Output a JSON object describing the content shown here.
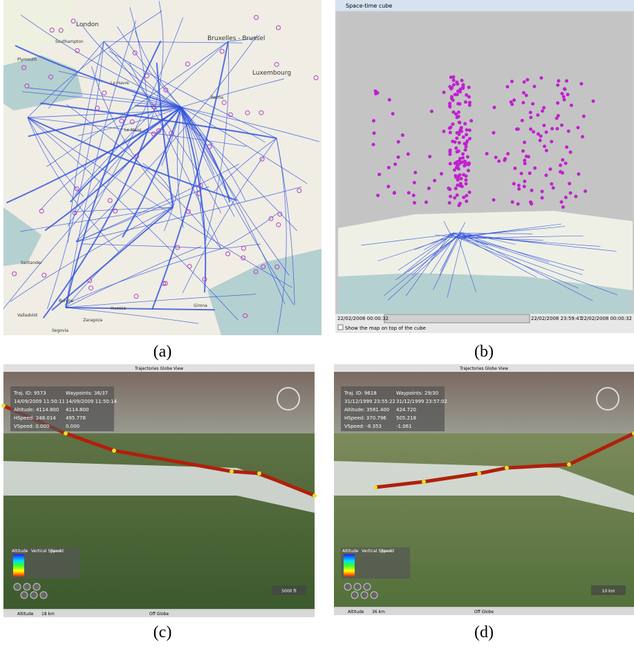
{
  "panels": [
    {
      "caption": "(a)",
      "labels": [
        "London",
        "Southampton",
        "Plymouth",
        "Bruxelles - Brussel",
        "Luxembourg",
        "Le Havre",
        "Reims",
        "Le Mans",
        "Santander",
        "Burgos",
        "Valladolid",
        "Segovia",
        "Huesca",
        "Girona",
        "Zaragoza"
      ]
    },
    {
      "caption": "(b)",
      "window_title": "Space-time cube",
      "start": "22/02/2008 00:00:32",
      "end": "22/02/2008 23:59:47",
      "current": "22/02/2008 00:00:32",
      "checkbox": "Show the map on top of the cube"
    },
    {
      "caption": "(c)",
      "window_title": "Trajectories Globe View",
      "info": [
        [
          "Traj. ID: 9573",
          "Waypoints: 36/37"
        ],
        [
          "14/09/2009 11:50:11",
          "14/09/2009 11:50:14"
        ],
        [
          "Altitude: 4114.800",
          "4114.800"
        ],
        [
          "HSpeed: 248.014",
          "495.778"
        ],
        [
          "VSpeed: 0.000",
          "0.000"
        ]
      ],
      "legend": [
        "Altitude",
        "Vertical Speed",
        "Speed"
      ],
      "scale": "5000 ft",
      "status": [
        "Altitude",
        "18 km",
        "Off Globe"
      ]
    },
    {
      "caption": "(d)",
      "window_title": "Trajectories Globe View",
      "info": [
        [
          "Traj. ID: 9618",
          "Waypoints: 29/30"
        ],
        [
          "31/12/1999 23:55:22",
          "31/12/1999 23:57:02"
        ],
        [
          "Altitude: 3581.400",
          "424.720"
        ],
        [
          "HSpeed: 370.796",
          "505.218"
        ],
        [
          "VSpeed: -8.353",
          "-1.061"
        ]
      ],
      "legend": [
        "Altitude",
        "Vertical Speed",
        "Speed"
      ],
      "scale": "10 km",
      "status": [
        "Altitude",
        "36 km",
        "Off Globe"
      ]
    }
  ]
}
